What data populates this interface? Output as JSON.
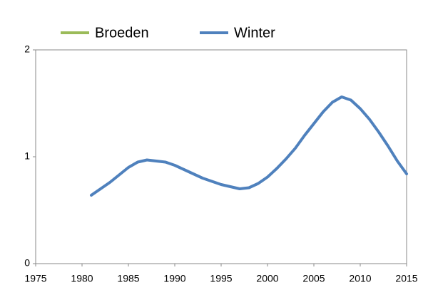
{
  "chart_data": {
    "type": "line",
    "x": [
      1981,
      1982,
      1983,
      1984,
      1985,
      1986,
      1987,
      1988,
      1989,
      1990,
      1991,
      1992,
      1993,
      1994,
      1995,
      1996,
      1997,
      1998,
      1999,
      2000,
      2001,
      2002,
      2003,
      2004,
      2005,
      2006,
      2007,
      2008,
      2009,
      2010,
      2011,
      2012,
      2013,
      2014,
      2015
    ],
    "series": [
      {
        "name": "Broeden",
        "color": "#9bbb59",
        "values": [
          null,
          null,
          null,
          null,
          null,
          null,
          null,
          null,
          null,
          null,
          null,
          null,
          null,
          null,
          null,
          null,
          null,
          null,
          null,
          null,
          null,
          null,
          null,
          null,
          null,
          null,
          null,
          null,
          null,
          null,
          null,
          null,
          null,
          null,
          null
        ]
      },
      {
        "name": "Winter",
        "color": "#4f81bd",
        "values": [
          0.64,
          0.7,
          0.76,
          0.83,
          0.9,
          0.95,
          0.97,
          0.96,
          0.95,
          0.92,
          0.88,
          0.84,
          0.8,
          0.77,
          0.74,
          0.72,
          0.7,
          0.71,
          0.75,
          0.81,
          0.89,
          0.98,
          1.08,
          1.2,
          1.31,
          1.42,
          1.51,
          1.56,
          1.53,
          1.45,
          1.35,
          1.23,
          1.1,
          0.96,
          0.84
        ]
      }
    ],
    "xlim": [
      1975,
      2015
    ],
    "xticks": [
      1975,
      1980,
      1985,
      1990,
      1995,
      2000,
      2005,
      2010,
      2015
    ],
    "ylim": [
      0,
      2
    ],
    "yticks": [
      0,
      1,
      2
    ],
    "grid": false
  }
}
